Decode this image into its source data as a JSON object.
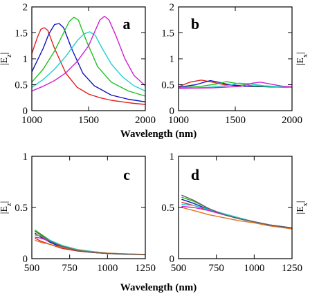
{
  "chart_data": [
    {
      "panel": "a",
      "type": "line",
      "xlabel": "",
      "ylabel": "|Ez|",
      "ylabel_main": "|E",
      "ylabel_sub": "z",
      "xlim": [
        1000,
        2000
      ],
      "ylim": [
        0,
        2
      ],
      "xticks": [
        1000,
        1500,
        2000
      ],
      "yticks": [
        0,
        0.5,
        1,
        1.5,
        2
      ],
      "xtick_labels": [
        "1000",
        "1500",
        "2000"
      ],
      "ytick_labels": [
        "0",
        "0.5",
        "1",
        "1.5",
        "2"
      ],
      "series": [
        {
          "color": "#e02020",
          "x": [
            1000,
            1050,
            1080,
            1110,
            1140,
            1200,
            1300,
            1400,
            1500,
            1600,
            1700,
            1800,
            1900,
            2000
          ],
          "y": [
            1.1,
            1.42,
            1.57,
            1.6,
            1.55,
            1.2,
            0.72,
            0.45,
            0.32,
            0.25,
            0.2,
            0.17,
            0.14,
            0.12
          ]
        },
        {
          "color": "#1010c0",
          "x": [
            1000,
            1100,
            1150,
            1200,
            1240,
            1280,
            1350,
            1450,
            1550,
            1700,
            1850,
            2000
          ],
          "y": [
            0.75,
            1.2,
            1.48,
            1.66,
            1.68,
            1.6,
            1.2,
            0.72,
            0.48,
            0.3,
            0.22,
            0.17
          ]
        },
        {
          "color": "#20c020",
          "x": [
            1000,
            1100,
            1200,
            1280,
            1330,
            1370,
            1410,
            1480,
            1580,
            1700,
            1850,
            2000
          ],
          "y": [
            0.55,
            0.8,
            1.15,
            1.5,
            1.72,
            1.8,
            1.75,
            1.35,
            0.85,
            0.55,
            0.38,
            0.28
          ]
        },
        {
          "color": "#20d0d0",
          "x": [
            1000,
            1100,
            1200,
            1300,
            1400,
            1460,
            1510,
            1560,
            1620,
            1700,
            1800,
            1900,
            2000
          ],
          "y": [
            0.45,
            0.6,
            0.8,
            1.05,
            1.35,
            1.48,
            1.52,
            1.45,
            1.2,
            0.9,
            0.65,
            0.48,
            0.38
          ]
        },
        {
          "color": "#d020d0",
          "x": [
            1000,
            1100,
            1200,
            1300,
            1400,
            1500,
            1560,
            1600,
            1640,
            1680,
            1740,
            1820,
            1900,
            2000
          ],
          "y": [
            0.38,
            0.47,
            0.58,
            0.73,
            0.95,
            1.25,
            1.55,
            1.75,
            1.82,
            1.75,
            1.45,
            1.0,
            0.68,
            0.48
          ]
        }
      ]
    },
    {
      "panel": "b",
      "type": "line",
      "xlabel": "",
      "ylabel": "|Ex|",
      "ylabel_main": "|E",
      "ylabel_sub": "x",
      "xlim": [
        1000,
        2000
      ],
      "ylim": [
        0,
        2
      ],
      "xticks": [
        1000,
        1500,
        2000
      ],
      "yticks": [
        0,
        0.5,
        1,
        1.5,
        2
      ],
      "xtick_labels": [
        "1000",
        "1500",
        "2000"
      ],
      "ytick_labels": [
        "0",
        "0.5",
        "1",
        "1.5",
        "2"
      ],
      "series": [
        {
          "color": "#e02020",
          "x": [
            1000,
            1100,
            1200,
            1300,
            1400,
            1600,
            1800,
            2000
          ],
          "y": [
            0.46,
            0.55,
            0.59,
            0.55,
            0.5,
            0.47,
            0.46,
            0.45
          ]
        },
        {
          "color": "#1010c0",
          "x": [
            1000,
            1150,
            1280,
            1350,
            1450,
            1600,
            1800,
            2000
          ],
          "y": [
            0.45,
            0.5,
            0.58,
            0.55,
            0.5,
            0.47,
            0.46,
            0.45
          ]
        },
        {
          "color": "#20c020",
          "x": [
            1000,
            1200,
            1350,
            1420,
            1500,
            1650,
            1850,
            2000
          ],
          "y": [
            0.44,
            0.47,
            0.52,
            0.56,
            0.53,
            0.48,
            0.46,
            0.45
          ]
        },
        {
          "color": "#20d0d0",
          "x": [
            1000,
            1250,
            1450,
            1530,
            1620,
            1750,
            1900,
            2000
          ],
          "y": [
            0.43,
            0.45,
            0.49,
            0.53,
            0.52,
            0.48,
            0.46,
            0.45
          ]
        },
        {
          "color": "#d020d0",
          "x": [
            1000,
            1300,
            1550,
            1650,
            1720,
            1820,
            1920,
            2000
          ],
          "y": [
            0.43,
            0.44,
            0.47,
            0.53,
            0.55,
            0.51,
            0.47,
            0.46
          ]
        }
      ]
    },
    {
      "panel": "c",
      "type": "line",
      "xlabel": "Wavelength (nm)",
      "ylabel": "|Ez|",
      "ylabel_main": "|E",
      "ylabel_sub": "z",
      "xlim": [
        500,
        1250
      ],
      "ylim": [
        0,
        1
      ],
      "xticks": [
        500,
        750,
        1000,
        1250
      ],
      "yticks": [
        0,
        0.5,
        1
      ],
      "xtick_labels": [
        "500",
        "750",
        "1000",
        "1250"
      ],
      "ytick_labels": [
        "0",
        "0.5",
        "1"
      ],
      "series": [
        {
          "color": "#e02020",
          "x": [
            520,
            560,
            620,
            700,
            800,
            900,
            1000,
            1100,
            1250
          ],
          "y": [
            0.2,
            0.17,
            0.14,
            0.1,
            0.075,
            0.06,
            0.05,
            0.045,
            0.04
          ]
        },
        {
          "color": "#1010c0",
          "x": [
            520,
            560,
            620,
            700,
            800,
            900,
            1000,
            1100,
            1250
          ],
          "y": [
            0.25,
            0.21,
            0.16,
            0.11,
            0.08,
            0.06,
            0.05,
            0.045,
            0.04
          ]
        },
        {
          "color": "#20c020",
          "x": [
            520,
            560,
            620,
            700,
            800,
            900,
            1000,
            1100,
            1250
          ],
          "y": [
            0.28,
            0.24,
            0.18,
            0.12,
            0.085,
            0.065,
            0.05,
            0.045,
            0.04
          ]
        },
        {
          "color": "#20d0d0",
          "x": [
            520,
            560,
            620,
            700,
            800,
            900,
            1000,
            1100,
            1250
          ],
          "y": [
            0.23,
            0.22,
            0.18,
            0.13,
            0.09,
            0.07,
            0.055,
            0.048,
            0.04
          ]
        },
        {
          "color": "#d020d0",
          "x": [
            520,
            560,
            620,
            700,
            800,
            900,
            1000,
            1100,
            1250
          ],
          "y": [
            0.21,
            0.2,
            0.17,
            0.12,
            0.085,
            0.065,
            0.052,
            0.046,
            0.04
          ]
        },
        {
          "color": "#a0a020",
          "x": [
            520,
            560,
            620,
            700,
            800,
            900,
            1000,
            1100,
            1250
          ],
          "y": [
            0.24,
            0.22,
            0.17,
            0.12,
            0.085,
            0.065,
            0.052,
            0.046,
            0.04
          ]
        },
        {
          "color": "#e07020",
          "x": [
            520,
            560,
            620,
            700,
            800,
            900,
            1000,
            1100,
            1250
          ],
          "y": [
            0.18,
            0.16,
            0.14,
            0.11,
            0.08,
            0.065,
            0.055,
            0.048,
            0.042
          ]
        },
        {
          "color": "#606060",
          "x": [
            520,
            560,
            620,
            700,
            800,
            900,
            1000,
            1100,
            1250
          ],
          "y": [
            0.27,
            0.23,
            0.17,
            0.12,
            0.08,
            0.06,
            0.05,
            0.044,
            0.038
          ]
        }
      ]
    },
    {
      "panel": "d",
      "type": "line",
      "xlabel": "",
      "ylabel": "|Ex|",
      "ylabel_main": "|E",
      "ylabel_sub": "x",
      "xlim": [
        500,
        1250
      ],
      "ylim": [
        0,
        1
      ],
      "xticks": [
        500,
        750,
        1000,
        1250
      ],
      "yticks": [
        0,
        0.5,
        1
      ],
      "xtick_labels": [
        "500",
        "750",
        "1000",
        "1250"
      ],
      "ytick_labels": [
        "0",
        "0.5",
        "1"
      ],
      "series": [
        {
          "color": "#e02020",
          "x": [
            520,
            600,
            700,
            800,
            900,
            1000,
            1100,
            1250
          ],
          "y": [
            0.55,
            0.52,
            0.47,
            0.43,
            0.39,
            0.36,
            0.33,
            0.3
          ]
        },
        {
          "color": "#1010c0",
          "x": [
            520,
            600,
            700,
            800,
            900,
            1000,
            1100,
            1250
          ],
          "y": [
            0.58,
            0.54,
            0.48,
            0.43,
            0.39,
            0.36,
            0.33,
            0.3
          ]
        },
        {
          "color": "#20c020",
          "x": [
            520,
            600,
            700,
            800,
            900,
            1000,
            1100,
            1250
          ],
          "y": [
            0.6,
            0.56,
            0.49,
            0.43,
            0.39,
            0.36,
            0.33,
            0.3
          ]
        },
        {
          "color": "#20d0d0",
          "x": [
            520,
            600,
            700,
            800,
            900,
            1000,
            1100,
            1250
          ],
          "y": [
            0.53,
            0.52,
            0.48,
            0.44,
            0.4,
            0.36,
            0.33,
            0.3
          ]
        },
        {
          "color": "#d020d0",
          "x": [
            520,
            600,
            700,
            800,
            900,
            1000,
            1100,
            1250
          ],
          "y": [
            0.51,
            0.5,
            0.47,
            0.43,
            0.39,
            0.36,
            0.33,
            0.3
          ]
        },
        {
          "color": "#e07020",
          "x": [
            520,
            600,
            700,
            800,
            900,
            1000,
            1100,
            1250
          ],
          "y": [
            0.5,
            0.47,
            0.43,
            0.4,
            0.37,
            0.35,
            0.32,
            0.29
          ]
        },
        {
          "color": "#606060",
          "x": [
            520,
            600,
            700,
            800,
            900,
            1000,
            1100,
            1250
          ],
          "y": [
            0.62,
            0.57,
            0.49,
            0.43,
            0.39,
            0.36,
            0.33,
            0.3
          ]
        }
      ]
    }
  ],
  "annotations": {
    "xlabel_top": "Wavelength (nm)",
    "xlabel_bottom": "Wavelength (nm)"
  }
}
